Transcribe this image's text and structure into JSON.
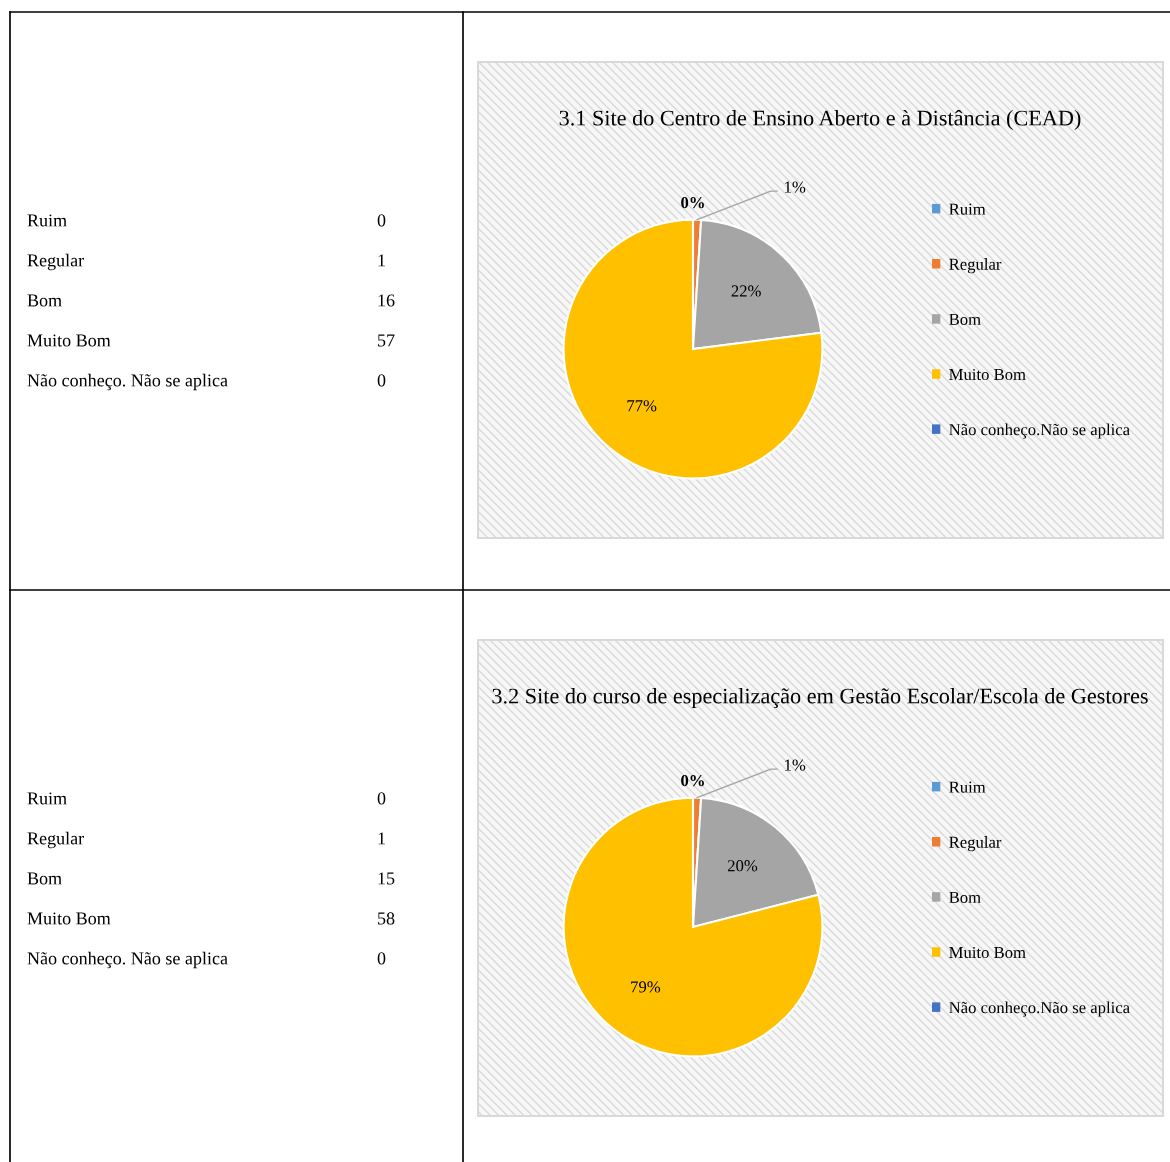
{
  "chart_data": [
    {
      "type": "pie",
      "title": "3.1 Site do Centro de Ensino Aberto e à Distância (CEAD)",
      "categories": [
        "Ruim",
        "Regular",
        "Bom",
        "Muito Bom",
        "Não conheço.Não se aplica"
      ],
      "values": [
        0,
        1,
        22,
        77,
        0
      ],
      "colors": [
        "#5b9bd5",
        "#ed7d31",
        "#a5a5a5",
        "#ffc000",
        "#4472c4"
      ],
      "value_labels": [
        "0%",
        "1%",
        "22%",
        "77%",
        null
      ],
      "annotations": [
        "Ruim",
        "0",
        "Regular",
        "1",
        "Bom",
        "16",
        "Muito Bom",
        "57",
        "Não conheço. Não se aplica",
        "0"
      ],
      "legend": "right"
    },
    {
      "type": "pie",
      "title": "3.2 Site do curso de especialização em Gestão Escolar/Escola de Gestores",
      "categories": [
        "Ruim",
        "Regular",
        "Bom",
        "Muito Bom",
        "Não conheço.Não se aplica"
      ],
      "values": [
        0,
        1,
        20,
        79,
        0
      ],
      "colors": [
        "#5b9bd5",
        "#ed7d31",
        "#a5a5a5",
        "#ffc000",
        "#4472c4"
      ],
      "value_labels": [
        "0%",
        "1%",
        "20%",
        "79%",
        null
      ],
      "annotations": [
        "Ruim",
        "0",
        "Regular",
        "1",
        "Bom",
        "15",
        "Muito Bom",
        "58",
        "Não conheço. Não se aplica",
        "0"
      ],
      "legend": "right"
    }
  ]
}
